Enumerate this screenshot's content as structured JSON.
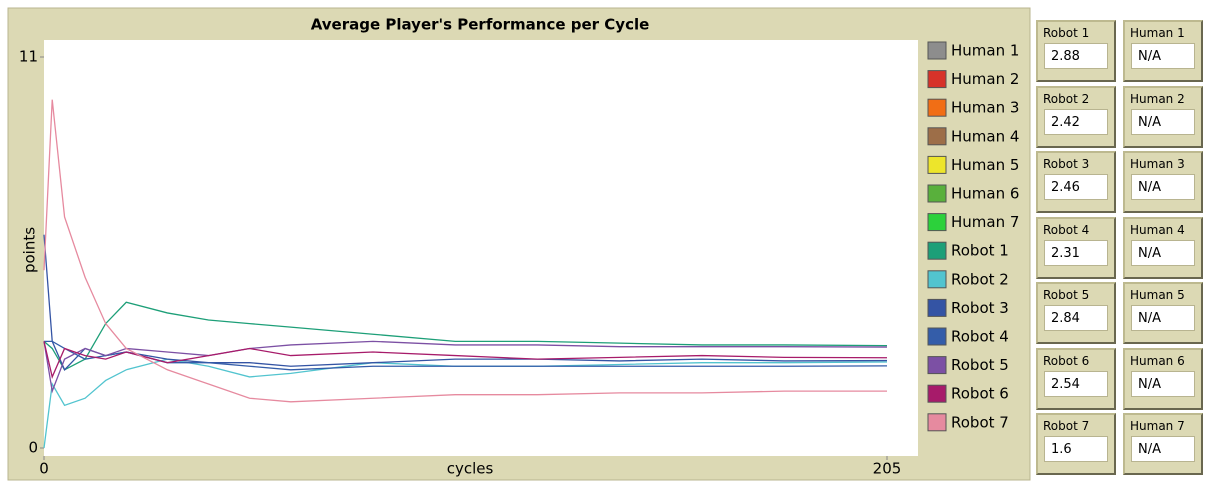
{
  "chart_data": {
    "type": "line",
    "title": "Average Player's Performance per Cycle",
    "xlabel": "cycles",
    "ylabel": "points",
    "x": [
      0,
      2,
      5,
      10,
      15,
      20,
      30,
      40,
      50,
      60,
      80,
      100,
      120,
      140,
      160,
      180,
      205
    ],
    "xlim": [
      0,
      205
    ],
    "xticks": [
      0,
      205
    ],
    "ylim": [
      0,
      11
    ],
    "yticks": [
      0,
      11
    ],
    "series": [
      {
        "name": "Human 1",
        "color": "#8d8d8d",
        "values": [
          null,
          null,
          null,
          null,
          null,
          null,
          null,
          null,
          null,
          null,
          null,
          null,
          null,
          null,
          null,
          null,
          null
        ]
      },
      {
        "name": "Human 2",
        "color": "#d73229",
        "values": [
          null,
          null,
          null,
          null,
          null,
          null,
          null,
          null,
          null,
          null,
          null,
          null,
          null,
          null,
          null,
          null,
          null
        ]
      },
      {
        "name": "Human 3",
        "color": "#f16e15",
        "values": [
          null,
          null,
          null,
          null,
          null,
          null,
          null,
          null,
          null,
          null,
          null,
          null,
          null,
          null,
          null,
          null,
          null
        ]
      },
      {
        "name": "Human 4",
        "color": "#9d6e48",
        "values": [
          null,
          null,
          null,
          null,
          null,
          null,
          null,
          null,
          null,
          null,
          null,
          null,
          null,
          null,
          null,
          null,
          null
        ]
      },
      {
        "name": "Human 5",
        "color": "#ede52b",
        "values": [
          null,
          null,
          null,
          null,
          null,
          null,
          null,
          null,
          null,
          null,
          null,
          null,
          null,
          null,
          null,
          null,
          null
        ]
      },
      {
        "name": "Human 6",
        "color": "#59b03c",
        "values": [
          null,
          null,
          null,
          null,
          null,
          null,
          null,
          null,
          null,
          null,
          null,
          null,
          null,
          null,
          null,
          null,
          null
        ]
      },
      {
        "name": "Human 7",
        "color": "#2cd13b",
        "values": [
          null,
          null,
          null,
          null,
          null,
          null,
          null,
          null,
          null,
          null,
          null,
          null,
          null,
          null,
          null,
          null,
          null
        ]
      },
      {
        "name": "Robot 1",
        "color": "#1d9f78",
        "values": [
          3,
          2.8,
          2.2,
          2.5,
          3.5,
          4.1,
          3.8,
          3.6,
          3.5,
          3.4,
          3.2,
          3.0,
          3.0,
          2.95,
          2.9,
          2.9,
          2.88
        ]
      },
      {
        "name": "Robot 2",
        "color": "#52c4cf",
        "values": [
          0,
          1.8,
          1.2,
          1.4,
          1.9,
          2.2,
          2.5,
          2.3,
          2.0,
          2.1,
          2.4,
          2.3,
          2.3,
          2.35,
          2.4,
          2.4,
          2.42
        ]
      },
      {
        "name": "Robot 3",
        "color": "#3454a4",
        "values": [
          6,
          3,
          2.2,
          2.8,
          2.6,
          2.7,
          2.5,
          2.4,
          2.4,
          2.3,
          2.4,
          2.5,
          2.5,
          2.45,
          2.5,
          2.45,
          2.46
        ]
      },
      {
        "name": "Robot 4",
        "color": "#345da9",
        "values": [
          3,
          3,
          2.8,
          2.5,
          2.6,
          2.7,
          2.4,
          2.4,
          2.3,
          2.2,
          2.3,
          2.3,
          2.3,
          2.3,
          2.3,
          2.3,
          2.31
        ]
      },
      {
        "name": "Robot 5",
        "color": "#7c50a4",
        "values": [
          3,
          1.6,
          2.5,
          2.8,
          2.6,
          2.8,
          2.7,
          2.6,
          2.8,
          2.9,
          3.0,
          2.9,
          2.9,
          2.85,
          2.85,
          2.85,
          2.84
        ]
      },
      {
        "name": "Robot 6",
        "color": "#a71b6a",
        "values": [
          3,
          2.0,
          2.8,
          2.6,
          2.5,
          2.7,
          2.4,
          2.6,
          2.8,
          2.6,
          2.7,
          2.6,
          2.5,
          2.55,
          2.6,
          2.55,
          2.54
        ]
      },
      {
        "name": "Robot 7",
        "color": "#e68a9f",
        "values": [
          5,
          9.8,
          6.5,
          4.8,
          3.5,
          2.8,
          2.2,
          1.8,
          1.4,
          1.3,
          1.4,
          1.5,
          1.5,
          1.55,
          1.55,
          1.6,
          1.6
        ]
      }
    ]
  },
  "monitors": [
    {
      "label": "Robot 1",
      "value": 2.88
    },
    {
      "label": "Human 1",
      "value": "N/A"
    },
    {
      "label": "Robot 2",
      "value": 2.42
    },
    {
      "label": "Human 2",
      "value": "N/A"
    },
    {
      "label": "Robot 3",
      "value": 2.46
    },
    {
      "label": "Human 3",
      "value": "N/A"
    },
    {
      "label": "Robot 4",
      "value": 2.31
    },
    {
      "label": "Human 4",
      "value": "N/A"
    },
    {
      "label": "Robot 5",
      "value": 2.84
    },
    {
      "label": "Human 5",
      "value": "N/A"
    },
    {
      "label": "Robot 6",
      "value": 2.54
    },
    {
      "label": "Human 6",
      "value": "N/A"
    },
    {
      "label": "Robot 7",
      "value": 1.6
    },
    {
      "label": "Human 7",
      "value": "N/A"
    }
  ]
}
